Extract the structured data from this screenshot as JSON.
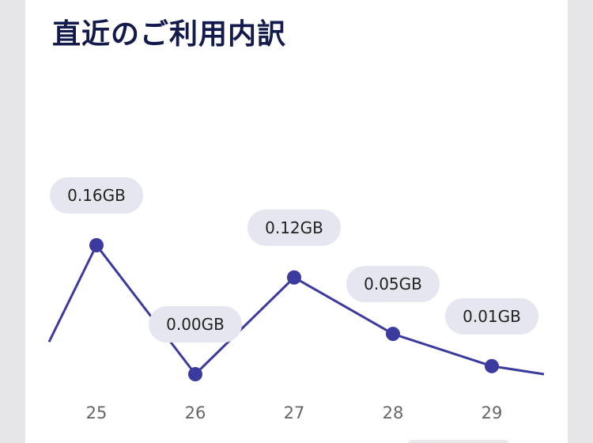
{
  "card": {
    "title": "直近のご利用内訳"
  },
  "colors": {
    "line": "#3b3a9e",
    "point": "#3b3a9e",
    "label_bg": "#e6e6f0",
    "tick": "#666666",
    "title": "#131a4c"
  },
  "chart_data": {
    "type": "line",
    "categories": [
      "25",
      "26",
      "27",
      "28",
      "29"
    ],
    "values": [
      0.16,
      0.0,
      0.12,
      0.05,
      0.01
    ],
    "data_labels": [
      "0.16GB",
      "0.00GB",
      "0.12GB",
      "0.05GB",
      "0.01GB"
    ],
    "unit": "GB",
    "title": "直近のご利用内訳",
    "xlabel": "",
    "ylabel": "",
    "grid": false,
    "legend": "none",
    "ylim": [
      0,
      0.16
    ],
    "edges": {
      "left_value": 0.04,
      "right_value": 0.0
    }
  }
}
